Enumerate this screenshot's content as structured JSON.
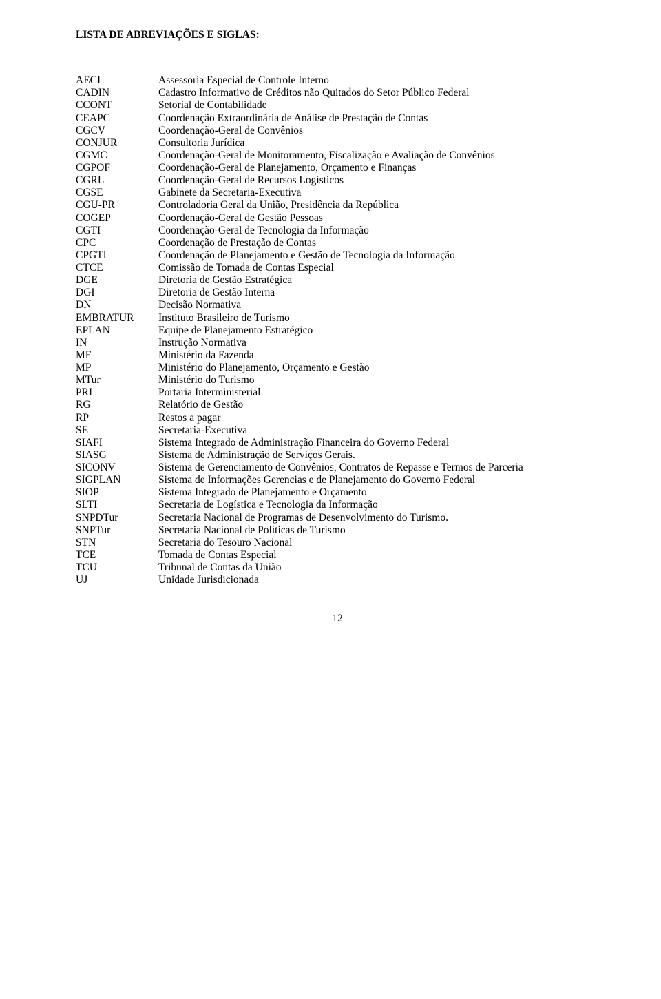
{
  "title": "LISTA DE ABREVIAÇÕES E SIGLAS:",
  "page_number": "12",
  "entries": [
    {
      "abbr": "AECI",
      "def": "Assessoria Especial de Controle Interno"
    },
    {
      "abbr": "CADIN",
      "def": "Cadastro Informativo de Créditos não Quitados do Setor Público Federal"
    },
    {
      "abbr": "CCONT",
      "def": "Setorial de Contabilidade"
    },
    {
      "abbr": "CEAPC",
      "def": "Coordenação Extraordinária de Análise de Prestação de Contas"
    },
    {
      "abbr": "CGCV",
      "def": "Coordenação-Geral de Convênios"
    },
    {
      "abbr": "CONJUR",
      "def": "Consultoria Jurídica"
    },
    {
      "abbr": "CGMC",
      "def": "Coordenação-Geral de Monitoramento, Fiscalização e Avaliação de Convênios"
    },
    {
      "abbr": "CGPOF",
      "def": "Coordenação-Geral de Planejamento, Orçamento e Finanças"
    },
    {
      "abbr": "CGRL",
      "def": "Coordenação-Geral de Recursos Logísticos"
    },
    {
      "abbr": "CGSE",
      "def": "Gabinete da Secretaria-Executiva"
    },
    {
      "abbr": "CGU-PR",
      "def": "Controladoria Geral da União, Presidência da República"
    },
    {
      "abbr": "COGEP",
      "def": "Coordenação-Geral de Gestão Pessoas"
    },
    {
      "abbr": "CGTI",
      "def": "Coordenação-Geral de Tecnologia da Informação"
    },
    {
      "abbr": "CPC",
      "def": "Coordenação de Prestação de Contas"
    },
    {
      "abbr": "CPGTI",
      "def": "Coordenação de Planejamento e Gestão de Tecnologia da Informação"
    },
    {
      "abbr": "CTCE",
      "def": "Comissão de Tomada de Contas Especial"
    },
    {
      "abbr": "DGE",
      "def": "Diretoria de Gestão Estratégica"
    },
    {
      "abbr": "DGI",
      "def": "Diretoria de Gestão Interna"
    },
    {
      "abbr": "DN",
      "def": "Decisão Normativa"
    },
    {
      "abbr": "EMBRATUR",
      "def": "Instituto Brasileiro de Turismo"
    },
    {
      "abbr": "EPLAN",
      "def": "Equipe de Planejamento Estratégico"
    },
    {
      "abbr": "IN",
      "def": "Instrução Normativa"
    },
    {
      "abbr": "MF",
      "def": "Ministério da Fazenda"
    },
    {
      "abbr": "MP",
      "def": "Ministério do Planejamento, Orçamento e Gestão"
    },
    {
      "abbr": "MTur",
      "def": "Ministério do Turismo"
    },
    {
      "abbr": "PRI",
      "def": "Portaria Interministerial"
    },
    {
      "abbr": "RG",
      "def": "Relatório de Gestão"
    },
    {
      "abbr": "RP",
      "def": "Restos a pagar"
    },
    {
      "abbr": "SE",
      "def": "Secretaria-Executiva"
    },
    {
      "abbr": "SIAFI",
      "def": "Sistema Integrado de Administração Financeira do Governo Federal"
    },
    {
      "abbr": "SIASG",
      "def": "Sistema de Administração de Serviços Gerais."
    },
    {
      "abbr": "SICONV",
      "def": "Sistema de Gerenciamento de Convênios, Contratos de Repasse e Termos de Parceria"
    },
    {
      "abbr": "SIGPLAN",
      "def": "Sistema de Informações Gerencias e de Planejamento do Governo Federal"
    },
    {
      "abbr": "SIOP",
      "def": "Sistema Integrado de Planejamento e Orçamento"
    },
    {
      "abbr": "SLTI",
      "def": "Secretaria de Logística e Tecnologia da Informação"
    },
    {
      "abbr": "SNPDTur",
      "def": "Secretaria Nacional de Programas de Desenvolvimento do Turismo."
    },
    {
      "abbr": "SNPTur",
      "def": "Secretaria Nacional de Políticas de Turismo"
    },
    {
      "abbr": "STN",
      "def": "Secretaria do Tesouro Nacional"
    },
    {
      "abbr": "TCE",
      "def": "Tomada de Contas Especial"
    },
    {
      "abbr": "TCU",
      "def": "Tribunal de Contas da União"
    },
    {
      "abbr": "UJ",
      "def": "Unidade Jurisdicionada"
    }
  ]
}
